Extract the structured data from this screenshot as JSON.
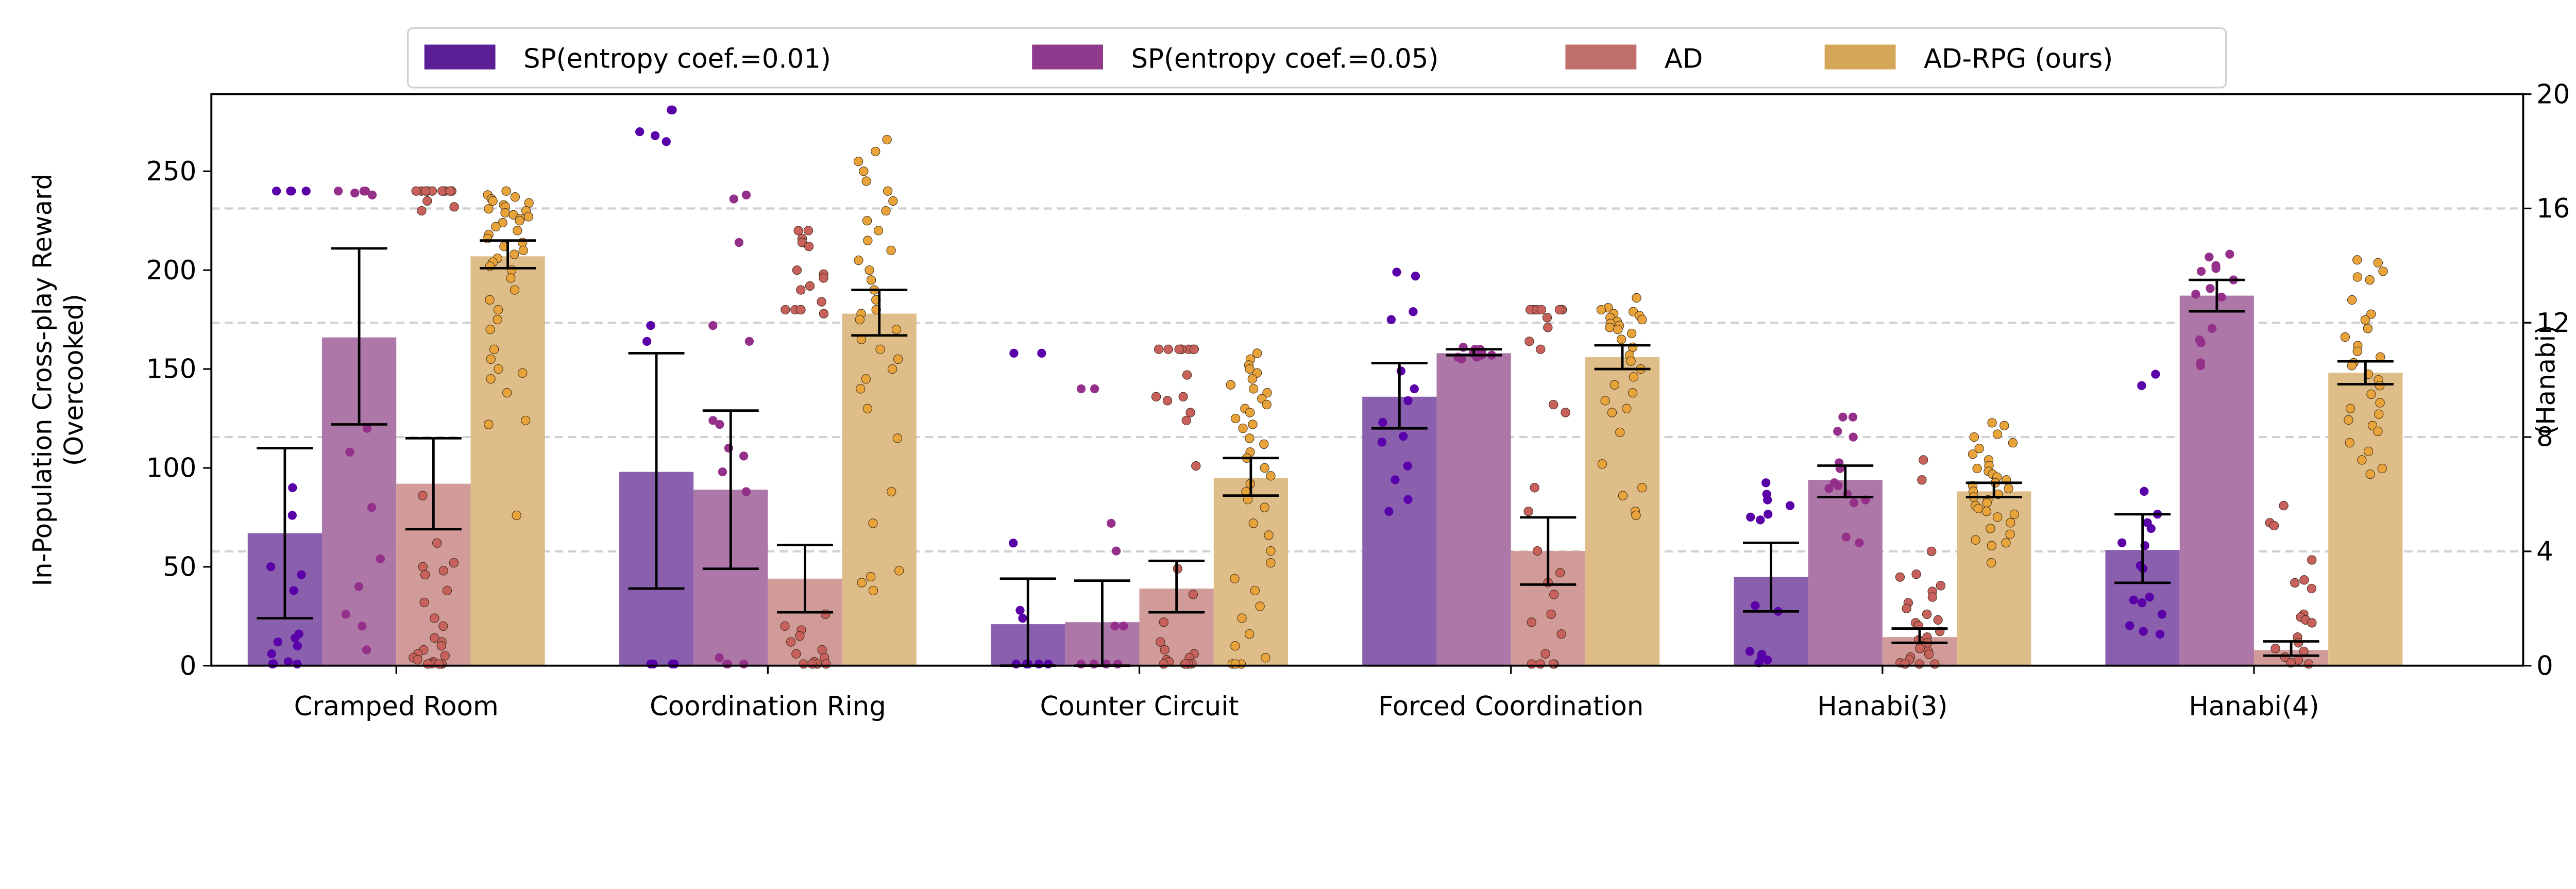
{
  "chart_data": {
    "type": "bar",
    "categories": [
      "Cramped Room",
      "Coordination Ring",
      "Counter Circuit",
      "Forced Coordination",
      "Hanabi(3)",
      "Hanabi(4)"
    ],
    "category_axis": [
      "left",
      "left",
      "left",
      "left",
      "right",
      "right"
    ],
    "ylabel_left": [
      "In-Population Cross-play Reward",
      "(Overcooked)"
    ],
    "ylabel_right": "(Hanabi)",
    "ylim_left": [
      0,
      289
    ],
    "ylim_right": [
      0,
      20
    ],
    "yticks_left": [
      0,
      50,
      100,
      150,
      200,
      250
    ],
    "yticks_right": [
      0,
      4,
      8,
      12,
      16,
      20
    ],
    "grid": "dashed horizontal lines at the right-axis ticks",
    "legend": {
      "placement": "top-center, above the plot",
      "entries": [
        "SP(entropy coef.=0.01)",
        "SP(entropy coef.=0.05)",
        "AD",
        "AD-RPG (ours)"
      ]
    },
    "series": [
      {
        "name": "SP(entropy coef.=0.01)",
        "color": "#5b1e96",
        "bar_color": "#8a60ae",
        "point_color": "#5a00a8",
        "values": [
          67,
          98,
          21,
          136,
          3.1,
          4.05
        ],
        "err_low": [
          24,
          39,
          0,
          120,
          1.9,
          2.9
        ],
        "err_high": [
          110,
          158,
          44,
          153,
          4.3,
          5.3
        ],
        "points": [
          [
            240,
            240,
            240,
            240,
            90,
            76,
            50,
            46,
            38,
            16,
            14,
            12,
            10,
            6,
            2,
            1,
            0,
            0
          ],
          [
            281,
            281,
            270,
            268,
            265,
            172,
            164,
            0,
            0,
            0,
            0,
            0
          ],
          [
            158,
            158,
            62,
            28,
            24,
            0,
            0,
            0,
            0,
            0
          ],
          [
            199,
            197,
            179,
            175,
            149,
            140,
            134,
            123,
            116,
            113,
            101,
            94,
            84,
            78
          ],
          [
            6.4,
            6.0,
            5.8,
            5.6,
            5.3,
            5.2,
            5.1,
            2.1,
            1.9,
            0.5,
            0.4,
            0.3,
            0.2,
            0.1
          ],
          [
            10.2,
            9.8,
            6.1,
            5.3,
            5.0,
            4.8,
            4.3,
            4.2,
            3.5,
            3.4,
            2.4,
            2.3,
            2.2,
            1.8,
            1.4,
            1.2,
            1.1
          ]
        ]
      },
      {
        "name": "SP(entropy coef.=0.05)",
        "color": "#8f3a8c",
        "bar_color": "#ad78a7",
        "point_color": "#94308a",
        "values": [
          166,
          89,
          22,
          158,
          6.5,
          12.95
        ],
        "err_low": [
          122,
          49,
          0,
          157,
          5.9,
          12.4
        ],
        "err_high": [
          211,
          129,
          43,
          160,
          7.0,
          13.5
        ],
        "points": [
          [
            240,
            240,
            240,
            240,
            239,
            238,
            120,
            108,
            80,
            54,
            40,
            26,
            20,
            8
          ],
          [
            238,
            236,
            214,
            172,
            164,
            124,
            122,
            110,
            106,
            98,
            88,
            4,
            0,
            0,
            0
          ],
          [
            140,
            140,
            72,
            58,
            20,
            20,
            0,
            0,
            0,
            0
          ],
          [
            161,
            160,
            160,
            159,
            159,
            158,
            158,
            157,
            157,
            156,
            156,
            155
          ],
          [
            8.7,
            8.7,
            8.2,
            8.0,
            7.1,
            6.9,
            6.4,
            6.3,
            6.2,
            6.0,
            5.8,
            5.7,
            4.5,
            4.3
          ],
          [
            14.4,
            14.3,
            14.0,
            13.9,
            13.8,
            13.5,
            13.2,
            13.0,
            12.9,
            11.8,
            11.4,
            11.3,
            10.6,
            10.5
          ]
        ]
      },
      {
        "name": "AD",
        "color": "#c0706a",
        "bar_color": "#d09b99",
        "point_color": "#c8605c",
        "values": [
          92,
          44,
          39,
          58,
          1.0,
          0.55
        ],
        "err_low": [
          69,
          27,
          27,
          41,
          0.8,
          0.35
        ],
        "err_high": [
          115,
          61,
          53,
          75,
          1.3,
          0.85
        ],
        "points": [
          [
            240,
            240,
            240,
            240,
            240,
            240,
            240,
            240,
            240,
            240,
            235,
            232,
            230,
            86,
            62,
            52,
            50,
            48,
            46,
            38,
            32,
            24,
            20,
            14,
            12,
            10,
            8,
            6,
            5,
            4,
            3,
            2,
            1,
            0,
            0,
            0
          ],
          [
            220,
            220,
            216,
            214,
            212,
            200,
            198,
            196,
            192,
            190,
            184,
            180,
            180,
            180,
            180,
            178,
            26,
            20,
            18,
            15,
            12,
            8,
            6,
            4,
            2,
            0,
            0,
            0,
            0
          ],
          [
            160,
            160,
            160,
            160,
            160,
            160,
            160,
            160,
            147,
            136,
            136,
            134,
            128,
            124,
            101,
            49,
            36,
            22,
            12,
            8,
            6,
            4,
            3,
            2,
            1,
            0,
            0,
            0,
            0
          ],
          [
            180,
            180,
            180,
            180,
            180,
            180,
            180,
            180,
            176,
            171,
            164,
            160,
            132,
            128,
            90,
            78,
            58,
            47,
            42,
            36,
            26,
            22,
            16,
            6,
            0,
            0,
            0,
            0
          ],
          [
            7.2,
            6.5,
            4.0,
            3.2,
            3.1,
            2.8,
            2.6,
            2.4,
            2.2,
            2.0,
            1.8,
            1.6,
            1.5,
            1.4,
            1.2,
            1.0,
            0.9,
            0.8,
            0.7,
            0.6,
            0.5,
            0.4,
            0.3,
            0.2,
            0.1,
            0,
            0,
            0
          ],
          [
            5.6,
            5.0,
            4.9,
            3.7,
            3.0,
            2.9,
            2.7,
            1.8,
            1.7,
            1.6,
            1.5,
            1.0,
            0.8,
            0.6,
            0.5,
            0.3,
            0.2,
            0.1,
            0
          ]
        ]
      },
      {
        "name": "AD-RPG (ours)",
        "color": "#d4a657",
        "bar_color": "#dfbd88",
        "point_color": "#e8a33a",
        "values": [
          207,
          178,
          95,
          156,
          6.1,
          10.25
        ],
        "err_low": [
          201,
          167,
          86,
          150,
          5.9,
          9.85
        ],
        "err_high": [
          215,
          190,
          105,
          162,
          6.4,
          10.65
        ],
        "points": [
          [
            240,
            238,
            237,
            236,
            235,
            234,
            233,
            232,
            231,
            230,
            229,
            228,
            227,
            226,
            225,
            224,
            222,
            220,
            218,
            216,
            214,
            212,
            210,
            208,
            206,
            204,
            202,
            200,
            196,
            190,
            185,
            180,
            175,
            170,
            160,
            155,
            150,
            148,
            145,
            138,
            124,
            122,
            76
          ],
          [
            266,
            260,
            255,
            250,
            245,
            240,
            235,
            230,
            225,
            220,
            215,
            210,
            205,
            200,
            195,
            190,
            185,
            180,
            178,
            175,
            170,
            165,
            160,
            155,
            150,
            145,
            140,
            130,
            115,
            88,
            72,
            48,
            45,
            42,
            38
          ],
          [
            158,
            155,
            152,
            150,
            148,
            145,
            142,
            140,
            138,
            135,
            132,
            130,
            128,
            125,
            122,
            120,
            115,
            112,
            108,
            105,
            100,
            96,
            92,
            88,
            84,
            80,
            72,
            66,
            58,
            52,
            44,
            38,
            30,
            24,
            16,
            10,
            4,
            0,
            0,
            0
          ],
          [
            186,
            181,
            180,
            179,
            178,
            177,
            176,
            175,
            174,
            173,
            172,
            171,
            170,
            168,
            165,
            161,
            157,
            154,
            150,
            146,
            142,
            138,
            134,
            130,
            128,
            118,
            102,
            90,
            86,
            78,
            76
          ],
          [
            8.5,
            8.4,
            8.1,
            8.0,
            7.8,
            7.6,
            7.4,
            7.2,
            7.0,
            6.9,
            6.8,
            6.7,
            6.6,
            6.5,
            6.4,
            6.3,
            6.2,
            6.1,
            6.0,
            5.9,
            5.8,
            5.7,
            5.6,
            5.5,
            5.4,
            5.3,
            5.2,
            5.0,
            4.8,
            4.6,
            4.4,
            4.3,
            4.2,
            3.6
          ],
          [
            14.2,
            14.1,
            13.8,
            13.6,
            13.5,
            12.8,
            12.3,
            12.1,
            11.8,
            11.5,
            11.2,
            11.0,
            10.8,
            10.6,
            10.5,
            10.2,
            10.0,
            9.8,
            9.5,
            9.2,
            9.0,
            8.8,
            8.6,
            8.4,
            8.2,
            7.8,
            7.5,
            7.2,
            6.9,
            6.7
          ]
        ]
      }
    ]
  }
}
